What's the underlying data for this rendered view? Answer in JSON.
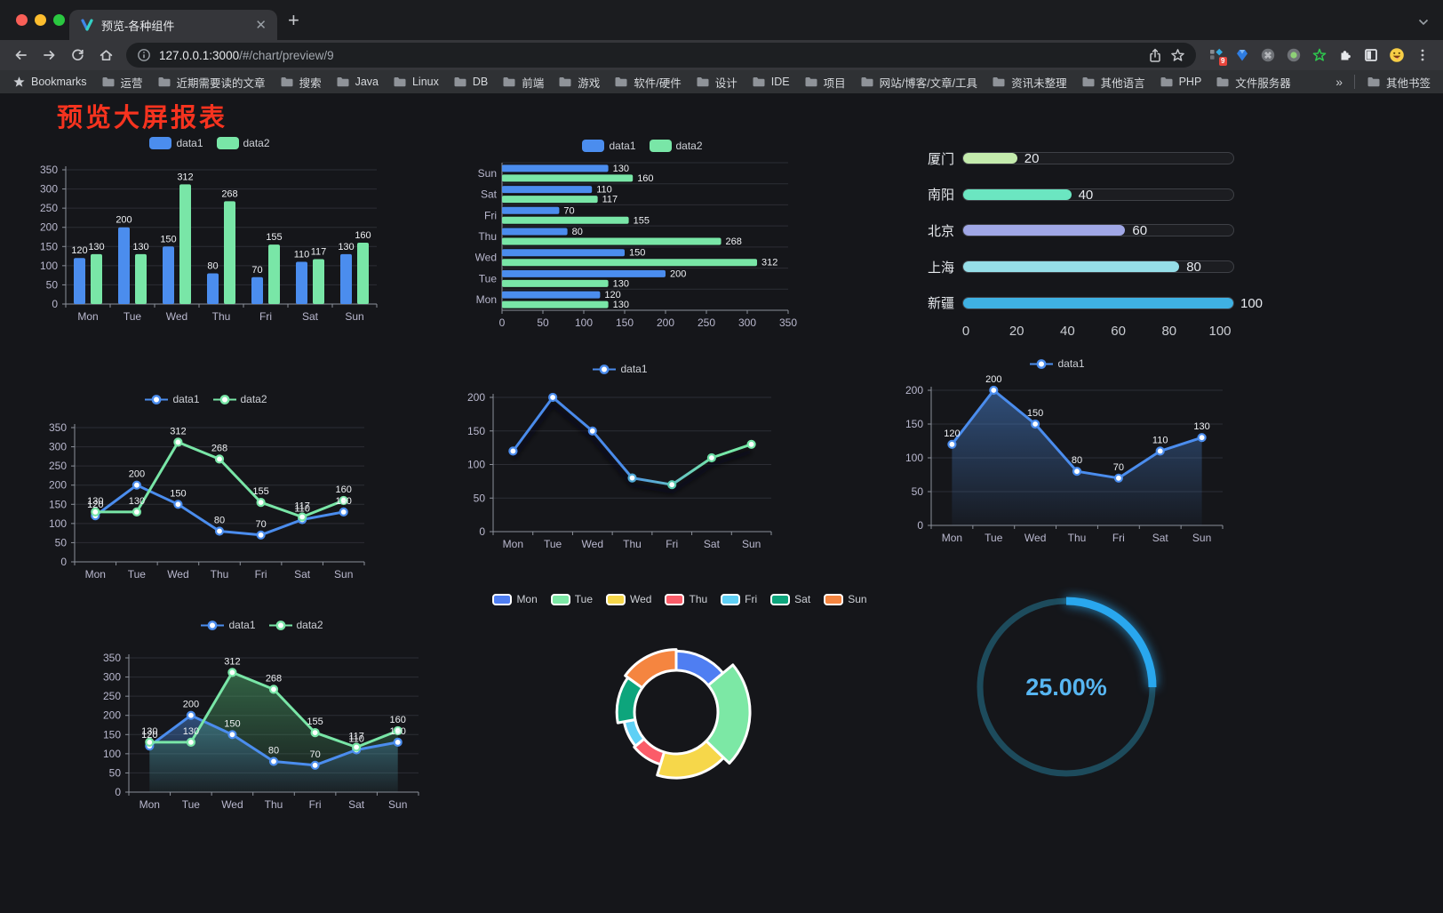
{
  "browser": {
    "tab": {
      "title": "预览-各种组件"
    },
    "url": {
      "host": "127.0.0.1:3000",
      "path": "/#/chart/preview/9"
    },
    "bookmarks_bar": {
      "star_label": "Bookmarks",
      "folders": [
        "运营",
        "近期需要读的文章",
        "搜索",
        "Java",
        "Linux",
        "DB",
        "前端",
        "游戏",
        "软件/硬件",
        "设计",
        "IDE",
        "项目",
        "网站/博客/文章/工具",
        "资讯未整理",
        "其他语言",
        "PHP",
        "文件服务器"
      ],
      "overflow": "»",
      "other": "其他书签"
    },
    "extensions": {
      "badge": "9"
    }
  },
  "page": {
    "title": "预览大屏报表",
    "title_color": "#f6331f",
    "background": "#15161a"
  },
  "chart_data": [
    {
      "id": "bar-vertical",
      "type": "bar",
      "categories": [
        "Mon",
        "Tue",
        "Wed",
        "Thu",
        "Fri",
        "Sat",
        "Sun"
      ],
      "series": [
        {
          "name": "data1",
          "color": "#4b8dee",
          "values": [
            120,
            200,
            150,
            80,
            70,
            110,
            130
          ]
        },
        {
          "name": "data2",
          "color": "#79e6a7",
          "values": [
            130,
            130,
            312,
            268,
            155,
            117,
            160
          ]
        }
      ],
      "ylim": [
        0,
        350
      ],
      "ystep": 50,
      "yticks": [
        0,
        50,
        100,
        150,
        200,
        250,
        300,
        350
      ],
      "legend_position": "top",
      "grid": true
    },
    {
      "id": "bar-horizontal",
      "type": "bar",
      "orientation": "horizontal",
      "display_order": "Sun-at-top",
      "categories": [
        "Mon",
        "Tue",
        "Wed",
        "Thu",
        "Fri",
        "Sat",
        "Sun"
      ],
      "series": [
        {
          "name": "data1",
          "color": "#4b8dee",
          "values": [
            120,
            200,
            150,
            80,
            70,
            110,
            130
          ]
        },
        {
          "name": "data2",
          "color": "#79e6a7",
          "values": [
            130,
            130,
            312,
            268,
            155,
            117,
            160
          ]
        }
      ],
      "xlim": [
        0,
        350
      ],
      "xstep": 50,
      "xticks": [
        0,
        50,
        100,
        150,
        200,
        250,
        300,
        350
      ],
      "legend_position": "top"
    },
    {
      "id": "progress-bars",
      "type": "bar",
      "orientation": "horizontal-progress",
      "items": [
        {
          "label": "厦门",
          "value": 20,
          "color": "#c4ebad"
        },
        {
          "label": "南阳",
          "value": 40,
          "color": "#6be6c1"
        },
        {
          "label": "北京",
          "value": 60,
          "color": "#a0a7e6"
        },
        {
          "label": "上海",
          "value": 80,
          "color": "#96dee8"
        },
        {
          "label": "新疆",
          "value": 100,
          "color": "#3fb1e3"
        }
      ],
      "xlim": [
        0,
        100
      ],
      "axis": [
        0,
        20,
        40,
        60,
        80,
        100
      ]
    },
    {
      "id": "line-two-series",
      "type": "line",
      "categories": [
        "Mon",
        "Tue",
        "Wed",
        "Thu",
        "Fri",
        "Sat",
        "Sun"
      ],
      "series": [
        {
          "name": "data1",
          "color": "#4b8dee",
          "values": [
            120,
            200,
            150,
            80,
            70,
            110,
            130
          ]
        },
        {
          "name": "data2",
          "color": "#79e6a7",
          "values": [
            130,
            130,
            312,
            268,
            155,
            117,
            160
          ]
        }
      ],
      "ylim": [
        0,
        350
      ],
      "ystep": 50,
      "point_labels": true,
      "legend_position": "top"
    },
    {
      "id": "line-gradient",
      "type": "line",
      "categories": [
        "Mon",
        "Tue",
        "Wed",
        "Thu",
        "Fri",
        "Sat",
        "Sun"
      ],
      "series": [
        {
          "name": "data1",
          "color_gradient": [
            "#4a8bec",
            "#76e8a8"
          ],
          "point_colors": [
            "#4a8bec",
            "#4a8bec",
            "#4a8bec",
            "#4fa9d6",
            "#57cbb0",
            "#68dba2",
            "#76e8a8"
          ],
          "values": [
            120,
            200,
            150,
            80,
            70,
            110,
            130
          ]
        }
      ],
      "ylim": [
        0,
        200
      ],
      "ystep": 50,
      "point_labels": false,
      "shadow": true,
      "legend_position": "top"
    },
    {
      "id": "area-single",
      "type": "area",
      "categories": [
        "Mon",
        "Tue",
        "Wed",
        "Thu",
        "Fri",
        "Sat",
        "Sun"
      ],
      "series": [
        {
          "name": "data1",
          "color": "#4b8dee",
          "area_color": "#4a86d8",
          "values": [
            120,
            200,
            150,
            80,
            70,
            110,
            130
          ]
        }
      ],
      "ylim": [
        0,
        200
      ],
      "ystep": 50,
      "point_labels": true,
      "legend_position": "top"
    },
    {
      "id": "area-two-series",
      "type": "area",
      "categories": [
        "Mon",
        "Tue",
        "Wed",
        "Thu",
        "Fri",
        "Sat",
        "Sun"
      ],
      "series": [
        {
          "name": "data1",
          "color": "#4b8dee",
          "area_color": "#4a86d8",
          "values": [
            120,
            200,
            150,
            80,
            70,
            110,
            130
          ]
        },
        {
          "name": "data2",
          "color": "#79e6a7",
          "area_color": "#4fae6e",
          "values": [
            130,
            130,
            312,
            268,
            155,
            117,
            160
          ]
        }
      ],
      "ylim": [
        0,
        350
      ],
      "ystep": 50,
      "point_labels": true,
      "legend_position": "top"
    },
    {
      "id": "donut-rose",
      "type": "pie",
      "style": "rose-donut-rounded",
      "items": [
        {
          "label": "Mon",
          "value": 120,
          "color": "#4f7ef2"
        },
        {
          "label": "Tue",
          "value": 200,
          "color": "#7ce8a5"
        },
        {
          "label": "Wed",
          "value": 150,
          "color": "#f6d74a"
        },
        {
          "label": "Thu",
          "value": 80,
          "color": "#fb5c69"
        },
        {
          "label": "Fri",
          "value": 70,
          "color": "#5fd0f5"
        },
        {
          "label": "Sat",
          "value": 110,
          "color": "#0da57c"
        },
        {
          "label": "Sun",
          "value": 130,
          "color": "#f58540"
        }
      ],
      "legend_position": "top"
    },
    {
      "id": "gauge",
      "type": "gauge",
      "value": 25,
      "max": 100,
      "value_text": "25.00%",
      "color": "#29a7ee",
      "track_color": "#1d4b5c",
      "text_color": "#57b6f2"
    }
  ]
}
